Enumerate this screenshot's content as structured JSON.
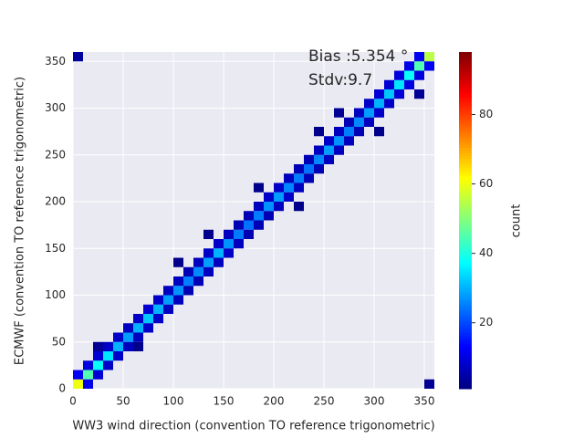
{
  "chart_data": {
    "type": "hist2d",
    "xlabel": "WW3 wind direction (convention TO reference trigonometric)",
    "ylabel": "ECMWF (convention TO reference trigonometric)",
    "annotations": [
      "Bias :5.354 °",
      "Stdv:9.7"
    ],
    "colorbar_label": "count",
    "colormap": "jet",
    "clim": [
      1,
      98
    ],
    "cticks": [
      20,
      40,
      60,
      80
    ],
    "xlim": [
      0,
      360
    ],
    "ylim": [
      0,
      360
    ],
    "xticks": [
      0,
      50,
      100,
      150,
      200,
      250,
      300,
      350
    ],
    "yticks": [
      0,
      50,
      100,
      150,
      200,
      250,
      300,
      350
    ],
    "grid": true,
    "bin_width": 10,
    "cells": [
      [
        0,
        0,
        60
      ],
      [
        10,
        10,
        45
      ],
      [
        20,
        20,
        38
      ],
      [
        30,
        30,
        35
      ],
      [
        40,
        40,
        30
      ],
      [
        50,
        50,
        28
      ],
      [
        60,
        60,
        30
      ],
      [
        70,
        70,
        32
      ],
      [
        80,
        80,
        30
      ],
      [
        90,
        90,
        28
      ],
      [
        100,
        100,
        27
      ],
      [
        110,
        110,
        25
      ],
      [
        120,
        120,
        26
      ],
      [
        130,
        130,
        28
      ],
      [
        140,
        140,
        30
      ],
      [
        150,
        150,
        27
      ],
      [
        160,
        160,
        25
      ],
      [
        170,
        170,
        24
      ],
      [
        180,
        180,
        25
      ],
      [
        190,
        190,
        27
      ],
      [
        200,
        200,
        28
      ],
      [
        210,
        210,
        26
      ],
      [
        220,
        220,
        25
      ],
      [
        230,
        230,
        24
      ],
      [
        240,
        240,
        26
      ],
      [
        250,
        250,
        28
      ],
      [
        260,
        260,
        27
      ],
      [
        270,
        270,
        25
      ],
      [
        280,
        280,
        26
      ],
      [
        290,
        290,
        28
      ],
      [
        300,
        300,
        30
      ],
      [
        310,
        310,
        32
      ],
      [
        320,
        320,
        35
      ],
      [
        330,
        330,
        38
      ],
      [
        340,
        340,
        45
      ],
      [
        350,
        350,
        55
      ],
      [
        0,
        10,
        12
      ],
      [
        10,
        20,
        10
      ],
      [
        20,
        30,
        9
      ],
      [
        30,
        40,
        8
      ],
      [
        40,
        50,
        8
      ],
      [
        50,
        60,
        7
      ],
      [
        60,
        70,
        8
      ],
      [
        70,
        80,
        9
      ],
      [
        80,
        90,
        8
      ],
      [
        90,
        100,
        7
      ],
      [
        100,
        110,
        7
      ],
      [
        110,
        120,
        6
      ],
      [
        120,
        130,
        7
      ],
      [
        130,
        140,
        8
      ],
      [
        140,
        150,
        8
      ],
      [
        150,
        160,
        7
      ],
      [
        160,
        170,
        6
      ],
      [
        170,
        180,
        6
      ],
      [
        180,
        190,
        7
      ],
      [
        190,
        200,
        8
      ],
      [
        200,
        210,
        8
      ],
      [
        210,
        220,
        7
      ],
      [
        220,
        230,
        6
      ],
      [
        230,
        240,
        6
      ],
      [
        240,
        250,
        7
      ],
      [
        250,
        260,
        8
      ],
      [
        260,
        270,
        7
      ],
      [
        270,
        280,
        6
      ],
      [
        280,
        290,
        7
      ],
      [
        290,
        300,
        8
      ],
      [
        300,
        310,
        9
      ],
      [
        310,
        320,
        9
      ],
      [
        320,
        330,
        10
      ],
      [
        330,
        340,
        11
      ],
      [
        340,
        350,
        12
      ],
      [
        10,
        0,
        11
      ],
      [
        20,
        10,
        9
      ],
      [
        30,
        20,
        8
      ],
      [
        40,
        30,
        8
      ],
      [
        50,
        40,
        7
      ],
      [
        60,
        50,
        7
      ],
      [
        70,
        60,
        8
      ],
      [
        80,
        70,
        8
      ],
      [
        90,
        80,
        7
      ],
      [
        100,
        90,
        7
      ],
      [
        110,
        100,
        6
      ],
      [
        120,
        110,
        6
      ],
      [
        130,
        120,
        7
      ],
      [
        140,
        130,
        7
      ],
      [
        150,
        140,
        8
      ],
      [
        160,
        150,
        7
      ],
      [
        170,
        160,
        6
      ],
      [
        180,
        170,
        6
      ],
      [
        190,
        180,
        6
      ],
      [
        200,
        190,
        7
      ],
      [
        210,
        200,
        8
      ],
      [
        220,
        210,
        7
      ],
      [
        230,
        220,
        6
      ],
      [
        240,
        230,
        6
      ],
      [
        250,
        240,
        7
      ],
      [
        260,
        250,
        7
      ],
      [
        270,
        260,
        7
      ],
      [
        280,
        270,
        6
      ],
      [
        290,
        280,
        7
      ],
      [
        300,
        290,
        8
      ],
      [
        310,
        300,
        8
      ],
      [
        320,
        310,
        9
      ],
      [
        330,
        320,
        10
      ],
      [
        340,
        330,
        10
      ],
      [
        350,
        340,
        12
      ],
      [
        0,
        350,
        4
      ],
      [
        350,
        0,
        3
      ],
      [
        20,
        40,
        3
      ],
      [
        60,
        40,
        2
      ],
      [
        130,
        160,
        2
      ],
      [
        220,
        190,
        2
      ],
      [
        260,
        290,
        3
      ],
      [
        300,
        270,
        2
      ],
      [
        340,
        310,
        3
      ],
      [
        100,
        130,
        2
      ],
      [
        180,
        210,
        2
      ],
      [
        240,
        270,
        2
      ]
    ]
  }
}
